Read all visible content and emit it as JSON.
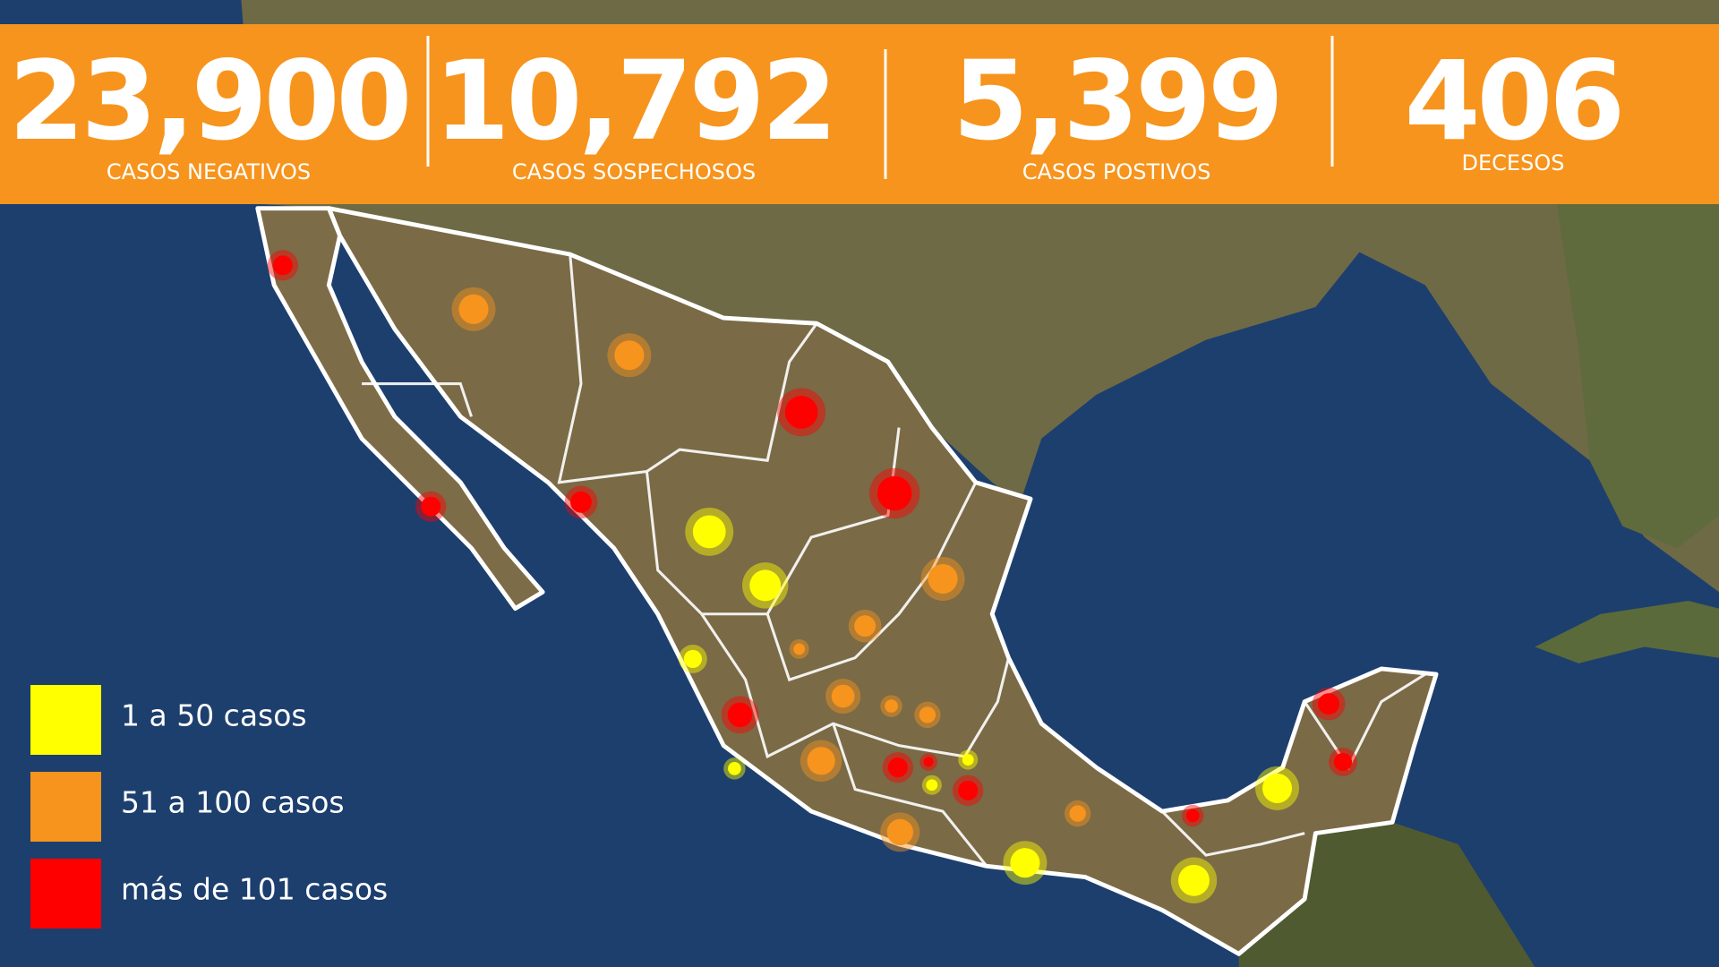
{
  "stats": [
    {
      "value": "23,900",
      "label": "CASOS NEGATIVOS"
    },
    {
      "value": "10,792",
      "label": "CASOS SOSPECHOSOS"
    },
    {
      "value": "5,399",
      "label": "CASOS POSTIVOS"
    },
    {
      "value": "406",
      "label": "DECESOS"
    }
  ],
  "legend": [
    {
      "label": "1 a 50 casos",
      "color": "#ffff00"
    },
    {
      "label": "51 a 100 casos",
      "color": "#f7941d"
    },
    {
      "label": "más de 101 casos",
      "color": "#ff0000"
    }
  ]
}
